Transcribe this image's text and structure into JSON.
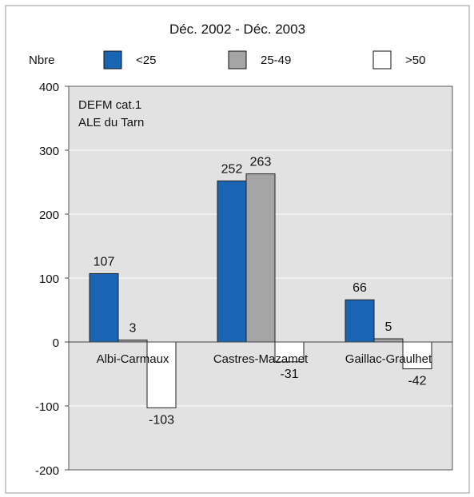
{
  "chart_data": {
    "type": "bar",
    "title": "Déc. 2002 - Déc. 2003",
    "ylabel": "Nbre",
    "annotation": [
      "DEFM cat.1",
      "ALE du Tarn"
    ],
    "categories": [
      "Albi-Carmaux",
      "Castres-Mazamet",
      "Gaillac-Graulhet"
    ],
    "series": [
      {
        "name": "<25",
        "values": [
          107,
          252,
          66
        ],
        "color": "#1a64b4"
      },
      {
        "name": "25-49",
        "values": [
          3,
          263,
          5
        ],
        "color": "#a5a5a5"
      },
      {
        "name": ">50",
        "values": [
          -103,
          -31,
          -42
        ],
        "color": "#ffffff"
      }
    ],
    "data_labels": [
      [
        "107",
        "252",
        "66"
      ],
      [
        "3",
        "263",
        "5"
      ],
      [
        "-103",
        "-31",
        "-42"
      ]
    ],
    "ylim": [
      -200,
      400
    ],
    "yticks": [
      400,
      300,
      200,
      100,
      0,
      -100,
      -200
    ],
    "ytick_labels": [
      "400",
      "300",
      "200",
      "100",
      "0",
      "-100",
      "-200"
    ],
    "grid": true,
    "legend_position": "top",
    "plot_background": "#e2e2e2"
  }
}
